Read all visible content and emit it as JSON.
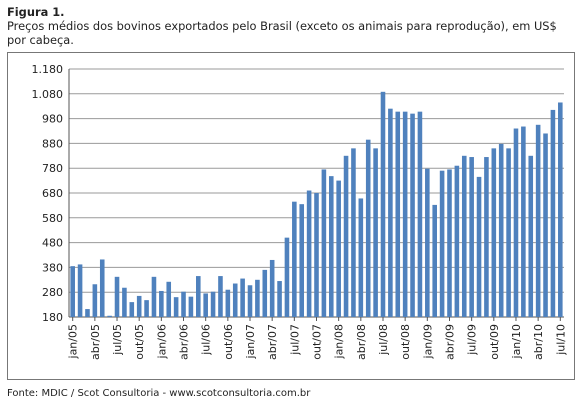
{
  "figure": {
    "label": "Figura 1.",
    "caption": "Preços médios dos bovinos exportados pelo Brasil (exceto os animais para reprodução), em US$ por cabeça."
  },
  "source": "Fonte: MDIC / Scot Consultoria - www.scotconsultoria.com.br",
  "colors": {
    "bar": "#4f81bd",
    "grid": "#9a9a9a",
    "axis": "#555555"
  },
  "chart_data": {
    "type": "bar",
    "title": "",
    "xlabel": "",
    "ylabel": "",
    "ylim": [
      180,
      1180
    ],
    "yticks": [
      180,
      280,
      380,
      480,
      580,
      680,
      780,
      880,
      980,
      1080,
      1180
    ],
    "ytick_labels": [
      "180",
      "280",
      "380",
      "480",
      "580",
      "680",
      "780",
      "880",
      "980",
      "1.080",
      "1.180"
    ],
    "grid": true,
    "x_tick_labels": [
      {
        "index": 0,
        "label": "jan/05"
      },
      {
        "index": 3,
        "label": "abr/05"
      },
      {
        "index": 6,
        "label": "jul/05"
      },
      {
        "index": 9,
        "label": "out/05"
      },
      {
        "index": 12,
        "label": "jan/06"
      },
      {
        "index": 15,
        "label": "abr/06"
      },
      {
        "index": 18,
        "label": "jul/06"
      },
      {
        "index": 21,
        "label": "out/06"
      },
      {
        "index": 24,
        "label": "jan/07"
      },
      {
        "index": 27,
        "label": "abr/07"
      },
      {
        "index": 30,
        "label": "jul/07"
      },
      {
        "index": 33,
        "label": "out/07"
      },
      {
        "index": 36,
        "label": "jan/08"
      },
      {
        "index": 39,
        "label": "abr/08"
      },
      {
        "index": 42,
        "label": "jul/08"
      },
      {
        "index": 45,
        "label": "out/08"
      },
      {
        "index": 48,
        "label": "jan/09"
      },
      {
        "index": 51,
        "label": "abr/09"
      },
      {
        "index": 54,
        "label": "jul/09"
      },
      {
        "index": 57,
        "label": "out/09"
      },
      {
        "index": 60,
        "label": "jan/10"
      },
      {
        "index": 63,
        "label": "abr/10"
      },
      {
        "index": 66,
        "label": "jul/10"
      }
    ],
    "categories": [
      "jan/05",
      "fev/05",
      "mar/05",
      "abr/05",
      "mai/05",
      "jun/05",
      "jul/05",
      "ago/05",
      "set/05",
      "out/05",
      "nov/05",
      "dez/05",
      "jan/06",
      "fev/06",
      "mar/06",
      "abr/06",
      "mai/06",
      "jun/06",
      "jul/06",
      "ago/06",
      "set/06",
      "out/06",
      "nov/06",
      "dez/06",
      "jan/07",
      "fev/07",
      "mar/07",
      "abr/07",
      "mai/07",
      "jun/07",
      "jul/07",
      "ago/07",
      "set/07",
      "out/07",
      "nov/07",
      "dez/07",
      "jan/08",
      "fev/08",
      "mar/08",
      "abr/08",
      "mai/08",
      "jun/08",
      "jul/08",
      "ago/08",
      "set/08",
      "out/08",
      "nov/08",
      "dez/08",
      "jan/09",
      "fev/09",
      "mar/09",
      "abr/09",
      "mai/09",
      "jun/09",
      "jul/09",
      "ago/09",
      "set/09",
      "out/09",
      "nov/09",
      "dez/09",
      "jan/10",
      "fev/10",
      "mar/10",
      "abr/10",
      "mai/10",
      "jun/10",
      "jul/10"
    ],
    "values": [
      385,
      392,
      212,
      312,
      412,
      185,
      342,
      298,
      240,
      265,
      248,
      342,
      285,
      322,
      260,
      282,
      262,
      345,
      275,
      282,
      345,
      290,
      315,
      335,
      308,
      330,
      370,
      410,
      325,
      500,
      645,
      635,
      690,
      680,
      775,
      748,
      730,
      830,
      860,
      658,
      895,
      860,
      1088,
      1020,
      1008,
      1008,
      1000,
      1008,
      778,
      632,
      770,
      775,
      790,
      830,
      825,
      745,
      825,
      860,
      878,
      860,
      940,
      948,
      830,
      955,
      920,
      1015,
      1045
    ]
  }
}
